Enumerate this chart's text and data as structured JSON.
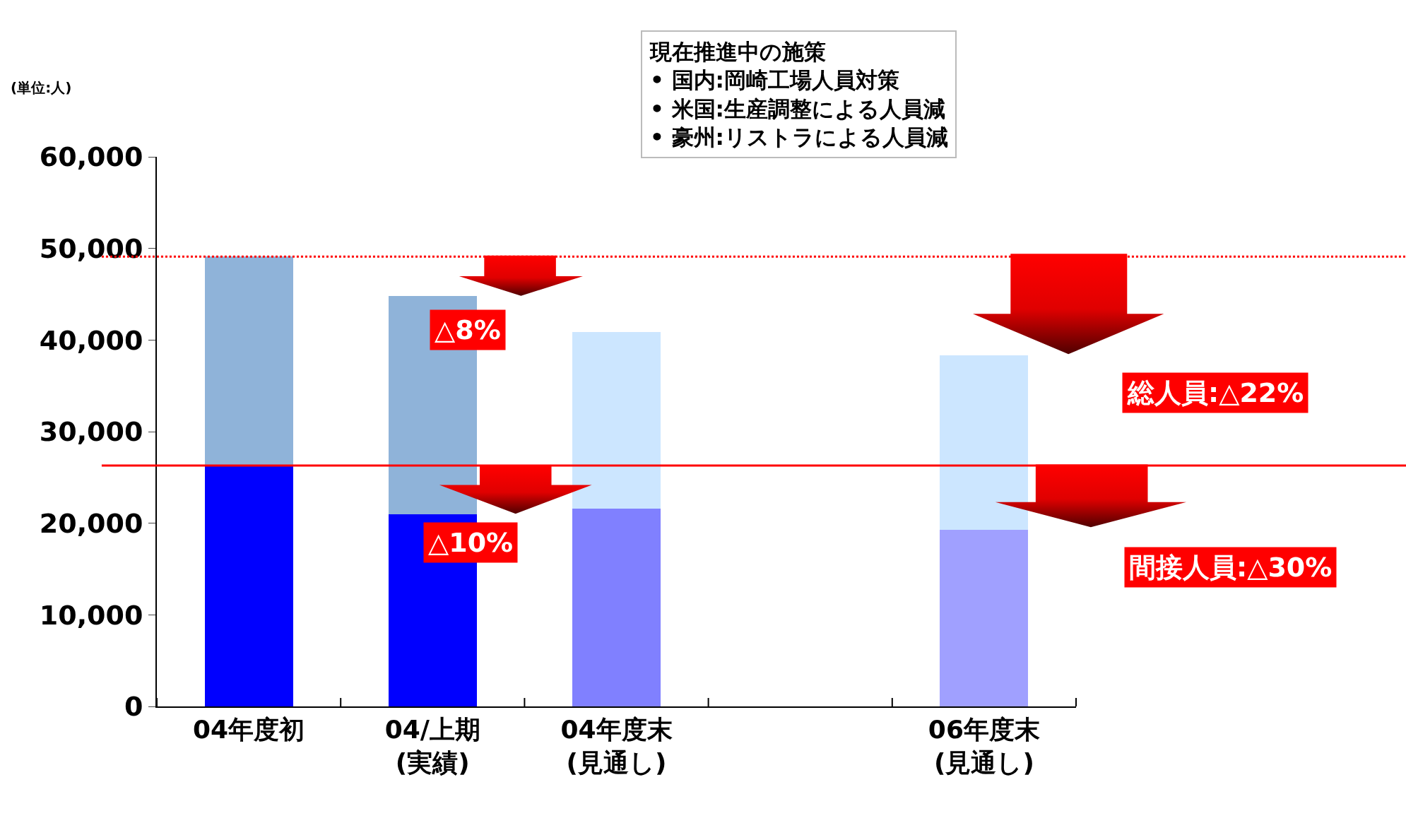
{
  "chart_data": {
    "type": "bar",
    "stacked": true,
    "categories": [
      "04年度初",
      "04/上期\n(実績)",
      "04年度末\n(見通し)",
      null,
      "06年度末\n(見通し)"
    ],
    "series": [
      {
        "colors": [
          "#0000ff",
          "#0000ff",
          "#8080ff",
          null,
          "#a0a0ff"
        ],
        "values": [
          26200,
          21000,
          21600,
          null,
          19300
        ]
      },
      {
        "colors": [
          "#8fb3d9",
          "#8fb3d9",
          "#cce6ff",
          null,
          "#cce6ff"
        ],
        "values": [
          22900,
          23800,
          19300,
          null,
          19000
        ]
      }
    ],
    "ylim": [
      0,
      60000
    ],
    "yticks": [
      {
        "value": 0,
        "label": "0"
      },
      {
        "value": 10000,
        "label": "10,000"
      },
      {
        "value": 20000,
        "label": "20,000"
      },
      {
        "value": 30000,
        "label": "30,000"
      },
      {
        "value": 40000,
        "label": "40,000"
      },
      {
        "value": 50000,
        "label": "50,000"
      },
      {
        "value": 60000,
        "label": "60,000"
      }
    ],
    "grid": false,
    "ref_lines": [
      {
        "axis": "y",
        "value": 49100,
        "color": "#ff0000",
        "line_style": "dotted"
      },
      {
        "axis": "y",
        "value": 26300,
        "color": "#ff0000",
        "line_style": "solid"
      }
    ],
    "annotations": [
      "(単位:人)",
      "現在推進中の施策\n• 国内:岡崎工場人員対策\n• 米国:生産調整による人員減\n• 豪州:リストラによる人員減",
      "△8%",
      "△10%",
      "総人員:△22%",
      "間接人員:△30%"
    ]
  }
}
